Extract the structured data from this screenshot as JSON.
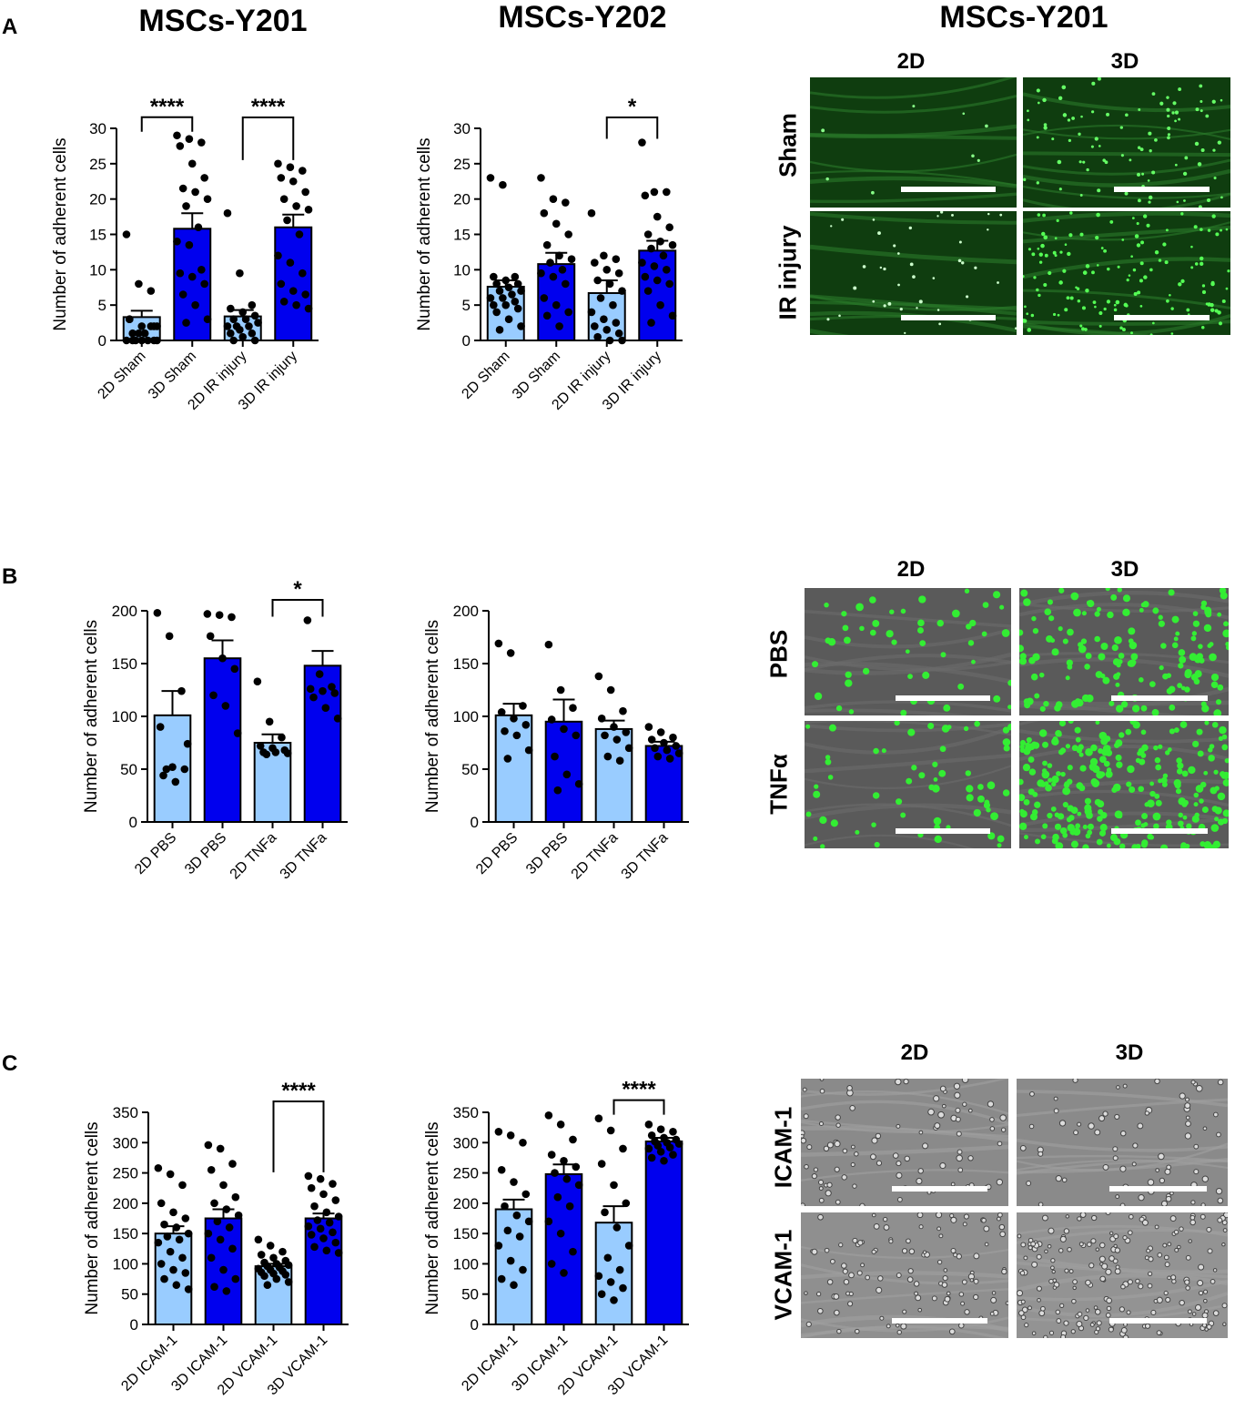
{
  "panel_letters": [
    "A",
    "B",
    "C"
  ],
  "titles": {
    "a1": "MSCs-Y201",
    "a2": "MSCs-Y202",
    "a3": "MSCs-Y201"
  },
  "image_labels": {
    "a_cols": [
      "2D",
      "3D"
    ],
    "a_rows": [
      "Sham",
      "IR injury"
    ],
    "b_cols": [
      "2D",
      "3D"
    ],
    "b_rows": [
      "PBS",
      "TNFα"
    ],
    "c_cols": [
      "2D",
      "3D"
    ],
    "c_rows": [
      "ICAM-1",
      "VCAM-1"
    ]
  },
  "colors": {
    "light_bar": "#99ccff",
    "dark_bar": "#0000ee",
    "fluor_bg": "#0a3a0a",
    "fluor_cells": "#44ff44",
    "gray_bg": "#555555"
  },
  "chart_data": [
    {
      "id": "A1",
      "type": "bar",
      "categories": [
        "2D Sham",
        "3D Sham",
        "2D IR injury",
        "3D IR injury"
      ],
      "values": [
        3.3,
        15.8,
        3.4,
        16.0
      ],
      "sem": [
        0.9,
        2.2,
        0.9,
        1.8
      ],
      "ylabel": "Number of adherent cells",
      "ylim": [
        0,
        30
      ],
      "yticks": [
        0,
        5,
        10,
        15,
        20,
        25,
        30
      ],
      "significance": [
        {
          "from": 0,
          "to": 1,
          "label": "****"
        },
        {
          "from": 2,
          "to": 3,
          "label": "****"
        }
      ],
      "points": [
        [
          15,
          8,
          7,
          3,
          2,
          2,
          1,
          1,
          0,
          0,
          0,
          0,
          1,
          2,
          3,
          0,
          0,
          0,
          1,
          2
        ],
        [
          29,
          28.5,
          28,
          27.5,
          25,
          23,
          21.5,
          21,
          20,
          19,
          16,
          14,
          13.5,
          10,
          9.5,
          9,
          8,
          6.5,
          5,
          3,
          2.5
        ],
        [
          18,
          9.5,
          5,
          4.5,
          4,
          3.5,
          3,
          3,
          2.5,
          2,
          2,
          2,
          1.5,
          1,
          1,
          0.5,
          0,
          0
        ],
        [
          25,
          24.5,
          24,
          23,
          22.5,
          21,
          20,
          19,
          18.5,
          17,
          15,
          12,
          11,
          9.5,
          8,
          7,
          6.5,
          5.5,
          5,
          4.5
        ]
      ]
    },
    {
      "id": "A2",
      "type": "bar",
      "categories": [
        "2D Sham",
        "3D Sham",
        "2D IR injury",
        "3D IR injury"
      ],
      "values": [
        7.6,
        10.8,
        6.7,
        12.7
      ],
      "sem": [
        0.9,
        1.6,
        1.8,
        1.4
      ],
      "ylabel": "Number of adherent cells",
      "ylim": [
        0,
        30
      ],
      "yticks": [
        0,
        5,
        10,
        15,
        20,
        25,
        30
      ],
      "significance": [
        {
          "from": 2,
          "to": 3,
          "label": "*"
        }
      ],
      "points": [
        [
          23,
          22,
          9,
          9,
          8.5,
          8,
          8,
          7.5,
          7,
          7,
          6.5,
          6,
          6,
          5.5,
          5,
          5,
          4.5,
          4,
          3,
          2,
          1.5
        ],
        [
          23,
          20,
          19.5,
          18,
          16.5,
          15,
          13.5,
          12,
          11.5,
          11,
          10,
          9.5,
          9,
          8,
          6,
          5,
          4,
          3.5,
          2
        ],
        [
          18,
          12,
          11.5,
          11,
          10,
          9.5,
          8.5,
          8,
          7,
          6,
          5,
          4,
          3,
          2.5,
          2,
          1.5,
          1,
          0.5,
          0,
          0
        ],
        [
          28,
          21,
          21,
          20.5,
          17.5,
          16,
          15,
          14,
          13.5,
          13,
          12,
          11,
          10.5,
          10,
          9,
          8.5,
          8,
          7,
          5,
          3.5,
          2.5
        ]
      ]
    },
    {
      "id": "B1",
      "type": "bar",
      "categories": [
        "2D PBS",
        "3D PBS",
        "2D TNFa",
        "3D TNFa"
      ],
      "values": [
        101,
        155,
        75,
        148
      ],
      "sem": [
        23,
        17,
        8,
        14
      ],
      "ylabel": "Number of adherent cells",
      "ylim": [
        0,
        200
      ],
      "yticks": [
        0,
        50,
        100,
        150,
        200
      ],
      "significance": [
        {
          "from": 2,
          "to": 3,
          "label": "*"
        }
      ],
      "points": [
        [
          198,
          176,
          124,
          90,
          52,
          50,
          44,
          38,
          74,
          50
        ],
        [
          197,
          196,
          194,
          176,
          155,
          145,
          120,
          110,
          84
        ],
        [
          133,
          95,
          80,
          72,
          70,
          68,
          66,
          66,
          65,
          64
        ],
        [
          191,
          140,
          128,
          126,
          124,
          122,
          118,
          108,
          98
        ]
      ]
    },
    {
      "id": "B2",
      "type": "bar",
      "categories": [
        "2D PBS",
        "3D PBS",
        "2D TNFa",
        "3D TNFa"
      ],
      "values": [
        101,
        95,
        88,
        72
      ],
      "sem": [
        11,
        21,
        8,
        4
      ],
      "ylabel": "Number of adherent cells",
      "ylim": [
        0,
        200
      ],
      "yticks": [
        0,
        50,
        100,
        150,
        200
      ],
      "significance": [],
      "points": [
        [
          169,
          160,
          110,
          104,
          98,
          92,
          86,
          82,
          68,
          60
        ],
        [
          168,
          125,
          108,
          97,
          88,
          82,
          62,
          45,
          36,
          30
        ],
        [
          138,
          125,
          105,
          98,
          90,
          85,
          82,
          78,
          70,
          62,
          58
        ],
        [
          90,
          85,
          80,
          78,
          75,
          72,
          70,
          68,
          65,
          62,
          60
        ]
      ]
    },
    {
      "id": "C1",
      "type": "bar",
      "categories": [
        "2D ICAM-1",
        "3D ICAM-1",
        "2D VCAM-1",
        "3D VCAM-1"
      ],
      "values": [
        150,
        175,
        96,
        175
      ],
      "sem": [
        12,
        15,
        4,
        8
      ],
      "ylabel": "Number of adherent cells",
      "ylim": [
        0,
        350
      ],
      "yticks": [
        0,
        50,
        100,
        150,
        200,
        250,
        300,
        350
      ],
      "significance": [
        {
          "from": 2,
          "to": 3,
          "label": "****"
        }
      ],
      "points": [
        [
          258,
          248,
          230,
          200,
          185,
          175,
          165,
          160,
          150,
          145,
          140,
          135,
          120,
          110,
          100,
          90,
          85,
          75,
          65,
          58
        ],
        [
          296,
          290,
          265,
          255,
          230,
          210,
          200,
          190,
          180,
          170,
          160,
          150,
          140,
          125,
          110,
          90,
          75,
          62,
          55
        ],
        [
          140,
          130,
          120,
          115,
          110,
          105,
          102,
          100,
          98,
          96,
          94,
          92,
          90,
          88,
          86,
          84,
          82,
          80,
          75,
          70,
          65
        ],
        [
          245,
          240,
          232,
          225,
          215,
          205,
          195,
          185,
          178,
          172,
          168,
          162,
          158,
          152,
          148,
          142,
          135,
          128,
          122,
          118
        ]
      ]
    },
    {
      "id": "C2",
      "type": "bar",
      "categories": [
        "2D ICAM-1",
        "3D ICAM-1",
        "2D VCAM-1",
        "3D VCAM-1"
      ],
      "values": [
        190,
        248,
        168,
        302
      ],
      "sem": [
        16,
        16,
        27,
        6
      ],
      "ylabel": "Number of adherent cells",
      "ylim": [
        0,
        350
      ],
      "yticks": [
        0,
        50,
        100,
        150,
        200,
        250,
        300,
        350
      ],
      "significance": [
        {
          "from": 2,
          "to": 3,
          "label": "****"
        }
      ],
      "points": [
        [
          318,
          312,
          300,
          255,
          235,
          215,
          195,
          180,
          170,
          155,
          145,
          130,
          105,
          90,
          75,
          65
        ],
        [
          345,
          330,
          305,
          280,
          270,
          260,
          250,
          240,
          230,
          210,
          195,
          170,
          150,
          120,
          100,
          85
        ],
        [
          340,
          320,
          290,
          265,
          230,
          200,
          185,
          160,
          130,
          110,
          90,
          80,
          70,
          60,
          50,
          40
        ],
        [
          330,
          322,
          318,
          312,
          308,
          305,
          302,
          300,
          298,
          295,
          292,
          290,
          285,
          280,
          275,
          270
        ]
      ]
    }
  ]
}
